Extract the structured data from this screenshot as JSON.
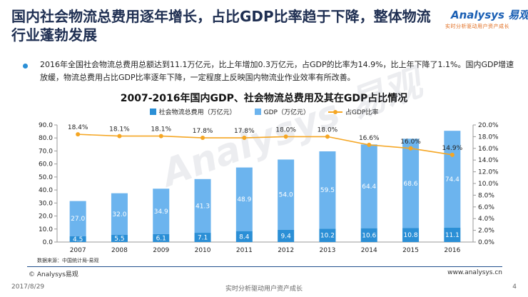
{
  "header": {
    "title": "国内社会物流总费用逐年增长，占比GDP比率趋于下降，整体物流行业蓬勃发展",
    "logo_name": "Analysys 易观",
    "logo_tagline": "实时分析驱动用户资产成长"
  },
  "summary": "2016年全国社会物流总费用总额达到11.1万亿元，比上年增加0.3万亿元，占GDP的比率为14.9%，比上年下降了1.1%。国内GDP增速放缓，物流总费用占比GDP比率逐年下降，一定程度上反映国内物流业作业效率有所改善。",
  "watermark": "Analysys 易观",
  "colors": {
    "logistics": "#2b8fd6",
    "gdp": "#6cb4ee",
    "ratio": "#f5a623",
    "title": "#1f2f52"
  },
  "chart_data": {
    "type": "bar",
    "title": "2007-2016年国内GDP、社会物流总费用及其在GDP占比情况",
    "categories": [
      "2007",
      "2008",
      "2009",
      "2010",
      "2011",
      "2012",
      "2013",
      "2014",
      "2015",
      "2016"
    ],
    "series": [
      {
        "name": "社会物流总费用（万亿元）",
        "type": "bar",
        "stack": "total",
        "axis": "left",
        "values": [
          4.5,
          5.5,
          6.1,
          7.1,
          8.4,
          9.4,
          10.2,
          10.6,
          10.8,
          11.1
        ]
      },
      {
        "name": "GDP（万亿元）",
        "type": "bar",
        "stack": "total",
        "axis": "left",
        "values": [
          27.0,
          32.0,
          34.9,
          41.3,
          48.9,
          54.0,
          59.5,
          64.4,
          68.6,
          74.4
        ]
      },
      {
        "name": "占GDP比率",
        "type": "line",
        "axis": "right",
        "values": [
          18.4,
          18.1,
          18.1,
          17.8,
          17.8,
          18.0,
          18.0,
          16.6,
          16.0,
          14.9
        ]
      }
    ],
    "y_left": {
      "min": 0,
      "max": 90,
      "step": 10,
      "tick_labels": [
        "0.0",
        "10.0",
        "20.0",
        "30.0",
        "40.0",
        "50.0",
        "60.0",
        "70.0",
        "80.0",
        "90.0"
      ]
    },
    "y_right": {
      "min": 0,
      "max": 20,
      "step": 2,
      "tick_labels": [
        "0.0%",
        "2.0%",
        "4.0%",
        "6.0%",
        "8.0%",
        "10.0%",
        "12.0%",
        "14.0%",
        "16.0%",
        "18.0%",
        "20.0%"
      ]
    },
    "bar_labels": {
      "logistics": [
        "4.5",
        "5.5",
        "6.1",
        "7.1",
        "8.4",
        "9.4",
        "10.2",
        "10.6",
        "10.8",
        "11.1"
      ],
      "gdp": [
        "27.0",
        "32.0",
        "34.9",
        "41.3",
        "48.9",
        "54.0",
        "59.5",
        "64.4",
        "68.6",
        "74.4"
      ],
      "ratio": [
        "18.4%",
        "18.1%",
        "18.1%",
        "17.8%",
        "17.8%",
        "18.0%",
        "18.0%",
        "16.6%",
        "16.0%",
        "14.9%"
      ]
    },
    "grid": false,
    "legend_position": "top-center"
  },
  "footer": {
    "source": "数据来源：中国统计局-易观",
    "copyright": "© Analysys易观",
    "website": "www.analysys.cn",
    "date": "2017/8/29",
    "slogan": "实时分析驱动用户资产成长",
    "page_number": "4"
  }
}
